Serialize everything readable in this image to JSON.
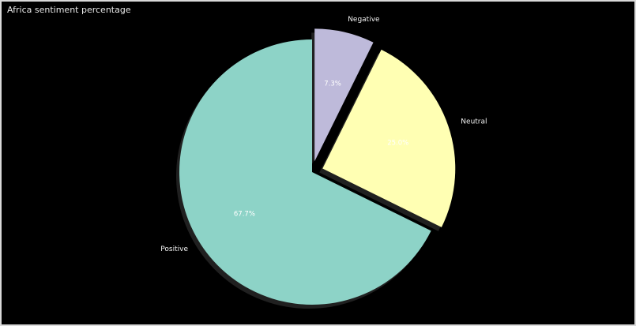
{
  "chart_data": {
    "type": "pie",
    "title": "Africa sentiment percentage",
    "categories": [
      "Positive",
      "Neutral",
      "Negative"
    ],
    "values": [
      67.7,
      25.0,
      7.3
    ],
    "value_labels": [
      "67.7%",
      "25.0%",
      "7.3%"
    ],
    "colors": [
      "#8dd3c7",
      "#ffffb3",
      "#bebada"
    ],
    "start_angle_deg": 90,
    "counterclockwise": true,
    "exploded": [
      false,
      true,
      true
    ],
    "shadow": true,
    "background": "#000000"
  }
}
